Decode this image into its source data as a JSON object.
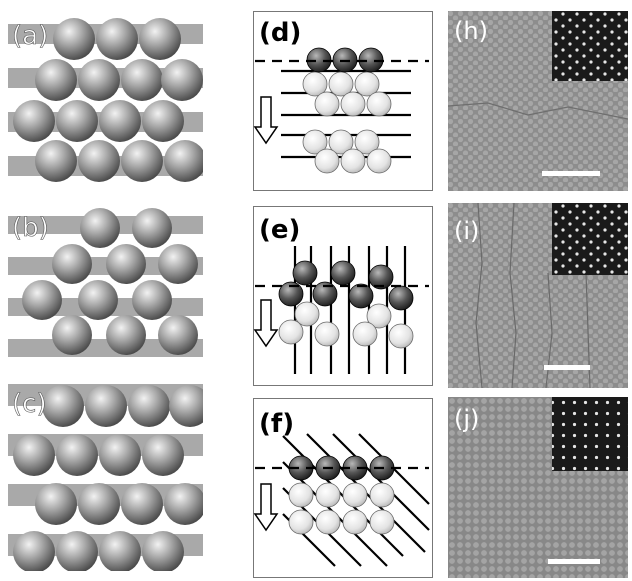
{
  "figure": {
    "panels": {
      "a": {
        "label": "(a)"
      },
      "b": {
        "label": "(b)"
      },
      "c": {
        "label": "(c)"
      },
      "d": {
        "label": "(d)"
      },
      "e": {
        "label": "(e)"
      },
      "f": {
        "label": "(f)"
      },
      "h": {
        "label": "(h)"
      },
      "i": {
        "label": "(i)"
      },
      "j": {
        "label": "(j)"
      }
    }
  }
}
